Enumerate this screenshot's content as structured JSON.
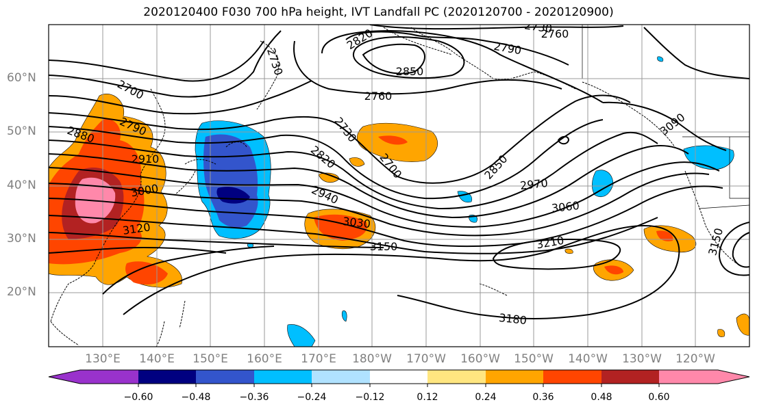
{
  "title": "2020120400 F030 700 hPa height, IVT Landfall PC (2020120700 - 2020120900)",
  "latitude_labels": [
    "60°N",
    "50°N",
    "40°N",
    "30°N",
    "20°N"
  ],
  "longitude_labels": [
    "130°E",
    "140°E",
    "150°E",
    "160°E",
    "170°E",
    "180°W",
    "170°W",
    "160°W",
    "150°W",
    "140°W",
    "130°W",
    "120°W"
  ],
  "colorbar": {
    "tick_labels": [
      "−0.60",
      "−0.48",
      "−0.36",
      "−0.24",
      "−0.12",
      "0.12",
      "0.24",
      "0.36",
      "0.48",
      "0.60"
    ],
    "colors": [
      "#9932CC",
      "#000080",
      "#3355CC",
      "#00BFFF",
      "#B0E2FF",
      "#FFFFFF",
      "#FFE680",
      "#FFA500",
      "#FF4500",
      "#B22222",
      "#FF88AA"
    ]
  },
  "contour_labels": [
    "2730",
    "2760",
    "2820",
    "2790",
    "2850",
    "2730",
    "2760",
    "2700",
    "2790",
    "2880",
    "2910",
    "3000",
    "3120",
    "2730",
    "2700",
    "2820",
    "2940",
    "3030",
    "3150",
    "2850",
    "2970",
    "3060",
    "3210",
    "3180",
    "3090",
    "3150"
  ],
  "colors": {
    "contour": "#000000",
    "grid": "#999999",
    "axis_tick_label": "#808080"
  }
}
